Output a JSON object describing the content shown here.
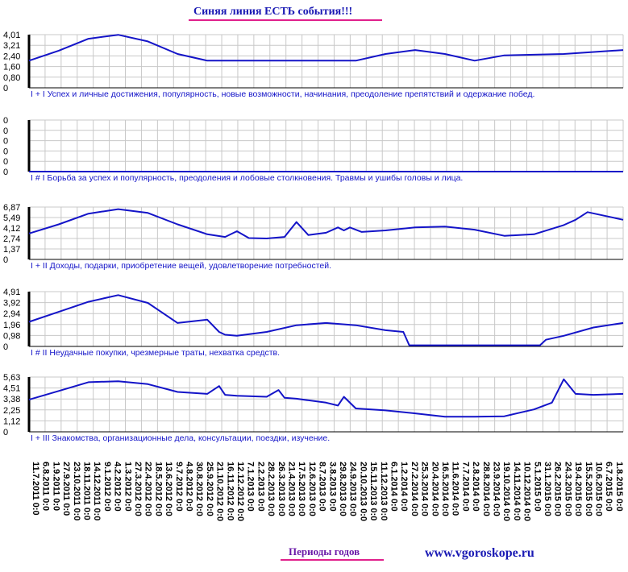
{
  "header": {
    "title": "Синяя линия ЕСТЬ события!!!"
  },
  "footer": {
    "periods_label": "Периоды годов",
    "site": "www.vgoroskope.ru"
  },
  "colors": {
    "line": "#1414c8",
    "grid": "#c8c8c8",
    "axis": "#000000",
    "title": "#1a1ab4",
    "underline": "#e0208c"
  },
  "chart_data": [
    {
      "type": "line",
      "label": "I + I Успех и личные достижения, популярность, новые возможности, начинания, преодоление препятствий и одержание побед.",
      "yticks": [
        "4,01",
        "3,21",
        "2,40",
        "1,60",
        "0,80",
        "0"
      ],
      "ylim": [
        0,
        4.01
      ],
      "x": [
        0,
        0.05,
        0.1,
        0.15,
        0.2,
        0.25,
        0.3,
        0.4,
        0.5,
        0.55,
        0.6,
        0.65,
        0.7,
        0.75,
        0.8,
        0.9,
        1.0
      ],
      "values": [
        2.05,
        2.8,
        3.7,
        4.0,
        3.5,
        2.55,
        2.05,
        2.05,
        2.05,
        2.05,
        2.55,
        2.85,
        2.55,
        2.05,
        2.45,
        2.55,
        2.85
      ]
    },
    {
      "type": "line",
      "label": "I # I Борьба за успех и популярность, преодоления и лобовые столкновения. Травмы и ушибы головы и лица.",
      "yticks": [
        "0",
        "0",
        "0",
        "0",
        "0",
        "0"
      ],
      "ylim": [
        0,
        1
      ],
      "x": [
        0,
        1.0
      ],
      "values": [
        0,
        0
      ]
    },
    {
      "type": "line",
      "label": "I + II Доходы, подарки, приобретение вещей, удовлетворение потребностей.",
      "yticks": [
        "6,87",
        "5,49",
        "4,12",
        "2,74",
        "1,37",
        "0"
      ],
      "ylim": [
        0,
        6.87
      ],
      "x": [
        0,
        0.05,
        0.1,
        0.15,
        0.2,
        0.25,
        0.3,
        0.33,
        0.35,
        0.37,
        0.4,
        0.43,
        0.45,
        0.47,
        0.5,
        0.52,
        0.53,
        0.54,
        0.56,
        0.6,
        0.65,
        0.7,
        0.75,
        0.8,
        0.85,
        0.9,
        0.92,
        0.94,
        1.0
      ],
      "values": [
        3.4,
        4.6,
        6.0,
        6.6,
        6.1,
        4.6,
        3.3,
        2.95,
        3.7,
        2.8,
        2.75,
        2.95,
        4.9,
        3.2,
        3.5,
        4.2,
        3.8,
        4.2,
        3.6,
        3.8,
        4.2,
        4.3,
        3.9,
        3.1,
        3.3,
        4.5,
        5.2,
        6.2,
        5.2
      ]
    },
    {
      "type": "line",
      "label": "I # II Неудачные покупки, чрезмерные траты, нехватка средств.",
      "yticks": [
        "4,91",
        "3,92",
        "2,94",
        "1,96",
        "0,98",
        "0"
      ],
      "ylim": [
        0,
        4.91
      ],
      "x": [
        0,
        0.05,
        0.1,
        0.15,
        0.2,
        0.25,
        0.3,
        0.32,
        0.33,
        0.35,
        0.4,
        0.45,
        0.5,
        0.55,
        0.6,
        0.63,
        0.64,
        0.7,
        0.8,
        0.86,
        0.87,
        0.9,
        0.95,
        1.0
      ],
      "values": [
        2.2,
        3.1,
        4.0,
        4.6,
        3.9,
        2.1,
        2.4,
        1.3,
        1.05,
        0.95,
        1.3,
        1.9,
        2.1,
        1.9,
        1.45,
        1.3,
        0.1,
        0.1,
        0.1,
        0.1,
        0.6,
        0.95,
        1.7,
        2.1
      ]
    },
    {
      "type": "line",
      "label": "I + III Знакомства, организационные дела, консультации, поездки, изучение.",
      "yticks": [
        "5,63",
        "4,51",
        "3,38",
        "2,25",
        "1,12",
        "0"
      ],
      "ylim": [
        0,
        5.63
      ],
      "x": [
        0,
        0.05,
        0.1,
        0.15,
        0.2,
        0.25,
        0.3,
        0.32,
        0.33,
        0.35,
        0.4,
        0.42,
        0.43,
        0.45,
        0.5,
        0.52,
        0.53,
        0.55,
        0.6,
        0.65,
        0.7,
        0.75,
        0.8,
        0.85,
        0.88,
        0.9,
        0.92,
        0.95,
        1.0
      ],
      "values": [
        3.3,
        4.2,
        5.1,
        5.2,
        4.9,
        4.1,
        3.9,
        4.7,
        3.8,
        3.7,
        3.6,
        4.3,
        3.5,
        3.4,
        3.0,
        2.7,
        3.6,
        2.4,
        2.2,
        1.9,
        1.55,
        1.55,
        1.6,
        2.3,
        3.0,
        5.4,
        3.9,
        3.8,
        3.9
      ]
    }
  ],
  "x_axis": {
    "ticks": [
      "11.7.2011 0:0",
      "6.8.2011 0:0",
      "1.9.2011 0:0",
      "27.9.2011 0:0",
      "23.10.2011 0:0",
      "18.11.2011 0:0",
      "14.12.2011 0:0",
      "9.1.2012 0:0",
      "4.2.2012 0:0",
      "1.3.2012 0:0",
      "27.3.2012 0:0",
      "22.4.2012 0:0",
      "18.5.2012 0:0",
      "13.6.2012 0:0",
      "9.7.2012 0:0",
      "4.8.2012 0:0",
      "30.8.2012 0:0",
      "25.9.2012 0:0",
      "21.10.2012 0:0",
      "16.11.2012 0:0",
      "12.12.2012 0:0",
      "7.1.2013 0:0",
      "2.2.2013 0:0",
      "28.2.2013 0:0",
      "26.3.2013 0:0",
      "21.4.2013 0:0",
      "17.5.2013 0:0",
      "12.6.2013 0:0",
      "8.7.2013 0:0",
      "3.8.2013 0:0",
      "29.8.2013 0:0",
      "24.9.2013 0:0",
      "20.10.2013 0:0",
      "15.11.2013 0:0",
      "11.12.2013 0:0",
      "6.1.2014 0:0",
      "1.2.2014 0:0",
      "27.2.2014 0:0",
      "25.3.2014 0:0",
      "20.4.2014 0:0",
      "16.5.2014 0:0",
      "11.6.2014 0:0",
      "7.7.2014 0:0",
      "2.8.2014 0:0",
      "28.8.2014 0:0",
      "23.9.2014 0:0",
      "19.10.2014 0:0",
      "14.11.2014 0:0",
      "10.12.2014 0:0",
      "5.1.2015 0:0",
      "31.1.2015 0:0",
      "26.2.2015 0:0",
      "24.3.2015 0:0",
      "19.4.2015 0:0",
      "15.5.2015 0:0",
      "10.6.2015 0:0",
      "6.7.2015 0:0",
      "1.8.2015 0:0"
    ]
  }
}
